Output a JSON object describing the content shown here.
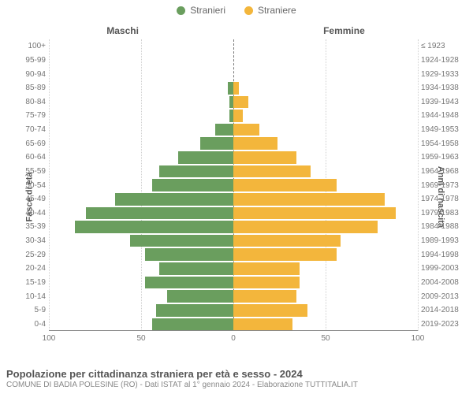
{
  "legend": {
    "male": {
      "label": "Stranieri",
      "color": "#6a9e5e"
    },
    "female": {
      "label": "Straniere",
      "color": "#f3b63c"
    }
  },
  "column_headers": {
    "left": "Maschi",
    "right": "Femmine"
  },
  "axis_titles": {
    "left": "Fasce di età",
    "right": "Anni di nascita"
  },
  "x_axis": {
    "max": 100,
    "ticks": [
      100,
      50,
      0,
      50,
      100
    ]
  },
  "chart": {
    "type": "population-pyramid",
    "background_color": "#ffffff",
    "grid_color": "#d0d0d0",
    "center_line_color": "#777777",
    "label_color": "#767676",
    "font_family": "Arial",
    "label_fontsize": 10,
    "header_fontsize": 12
  },
  "rows": [
    {
      "age": "100+",
      "birth": "≤ 1923",
      "m": 0,
      "f": 0
    },
    {
      "age": "95-99",
      "birth": "1924-1928",
      "m": 0,
      "f": 0
    },
    {
      "age": "90-94",
      "birth": "1929-1933",
      "m": 0,
      "f": 0
    },
    {
      "age": "85-89",
      "birth": "1934-1938",
      "m": 3,
      "f": 3
    },
    {
      "age": "80-84",
      "birth": "1939-1943",
      "m": 2,
      "f": 8
    },
    {
      "age": "75-79",
      "birth": "1944-1948",
      "m": 2,
      "f": 5
    },
    {
      "age": "70-74",
      "birth": "1949-1953",
      "m": 10,
      "f": 14
    },
    {
      "age": "65-69",
      "birth": "1954-1958",
      "m": 18,
      "f": 24
    },
    {
      "age": "60-64",
      "birth": "1959-1963",
      "m": 30,
      "f": 34
    },
    {
      "age": "55-59",
      "birth": "1964-1968",
      "m": 40,
      "f": 42
    },
    {
      "age": "50-54",
      "birth": "1969-1973",
      "m": 44,
      "f": 56
    },
    {
      "age": "45-49",
      "birth": "1974-1978",
      "m": 64,
      "f": 82
    },
    {
      "age": "40-44",
      "birth": "1979-1983",
      "m": 80,
      "f": 88
    },
    {
      "age": "35-39",
      "birth": "1984-1988",
      "m": 86,
      "f": 78
    },
    {
      "age": "30-34",
      "birth": "1989-1993",
      "m": 56,
      "f": 58
    },
    {
      "age": "25-29",
      "birth": "1994-1998",
      "m": 48,
      "f": 56
    },
    {
      "age": "20-24",
      "birth": "1999-2003",
      "m": 40,
      "f": 36
    },
    {
      "age": "15-19",
      "birth": "2004-2008",
      "m": 48,
      "f": 36
    },
    {
      "age": "10-14",
      "birth": "2009-2013",
      "m": 36,
      "f": 34
    },
    {
      "age": "5-9",
      "birth": "2014-2018",
      "m": 42,
      "f": 40
    },
    {
      "age": "0-4",
      "birth": "2019-2023",
      "m": 44,
      "f": 32
    }
  ],
  "footer": {
    "title": "Popolazione per cittadinanza straniera per età e sesso - 2024",
    "subtitle": "COMUNE DI BADIA POLESINE (RO) - Dati ISTAT al 1° gennaio 2024 - Elaborazione TUTTITALIA.IT"
  }
}
